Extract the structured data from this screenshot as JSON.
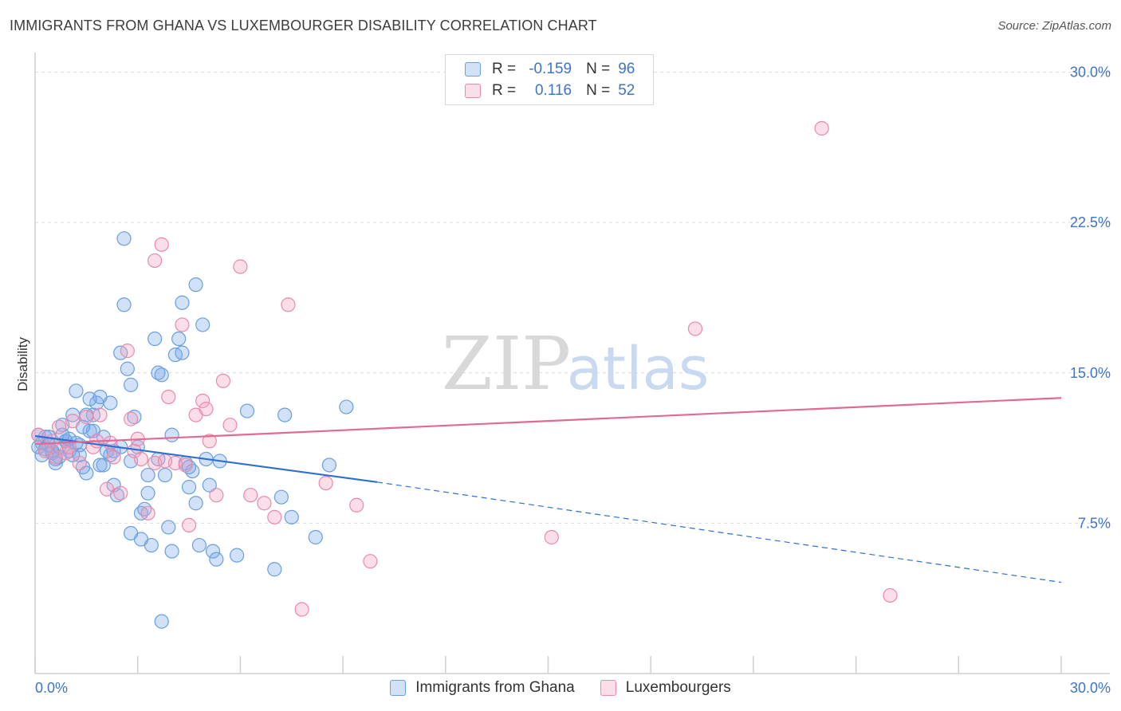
{
  "header": {
    "title": "IMMIGRANTS FROM GHANA VS LUXEMBOURGER DISABILITY CORRELATION CHART",
    "source": "Source: ZipAtlas.com"
  },
  "watermark": {
    "zip": "ZIP",
    "atlas": "atlas"
  },
  "legend": {
    "rows": [
      {
        "r_label": "R =",
        "r_value": "-0.159",
        "n_label": "N =",
        "n_value": "96"
      },
      {
        "r_label": "R =",
        "r_value": "0.116",
        "n_label": "N =",
        "n_value": "52"
      }
    ]
  },
  "colors": {
    "blue": "#6a9fe0",
    "blue_fill": "rgba(120,170,235,0.35)",
    "blue_line": "#2f6fd1",
    "pink": "#e88aaa",
    "pink_fill": "rgba(245,160,190,0.35)",
    "pink_line": "#e06a94",
    "tick_text": "#3d74c9"
  },
  "chart_data": {
    "type": "scatter",
    "title": "IMMIGRANTS FROM GHANA VS LUXEMBOURGER DISABILITY CORRELATION CHART",
    "xlabel": "",
    "ylabel": "Disability",
    "xlim": [
      0,
      30
    ],
    "ylim": [
      0,
      30.5
    ],
    "x_tick_labels": [
      "0.0%",
      "30.0%"
    ],
    "y_ticks": [
      7.5,
      15.0,
      22.5,
      30.0
    ],
    "y_tick_labels": [
      "7.5%",
      "15.0%",
      "22.5%",
      "30.0%"
    ],
    "series": [
      {
        "name": "Immigrants from Ghana",
        "color": "blue",
        "r": -0.159,
        "n": 96,
        "trend": {
          "x0": 0,
          "y0": 11.85,
          "x1": 10.0,
          "y1": 9.55,
          "dash_x1": 30.0,
          "dash_y1": 4.55
        },
        "points": [
          [
            0.1,
            11.9
          ],
          [
            0.2,
            11.5
          ],
          [
            0.3,
            11.2
          ],
          [
            0.4,
            11.8
          ],
          [
            0.5,
            11.0
          ],
          [
            0.6,
            10.7
          ],
          [
            0.7,
            11.3
          ],
          [
            0.8,
            12.4
          ],
          [
            0.9,
            11.6
          ],
          [
            1.0,
            11.1
          ],
          [
            1.1,
            12.9
          ],
          [
            1.2,
            11.5
          ],
          [
            1.3,
            10.9
          ],
          [
            1.4,
            10.3
          ],
          [
            1.5,
            10.0
          ],
          [
            1.6,
            12.1
          ],
          [
            1.7,
            12.9
          ],
          [
            1.8,
            13.5
          ],
          [
            1.9,
            13.8
          ],
          [
            2.0,
            11.8
          ],
          [
            2.1,
            11.1
          ],
          [
            2.2,
            10.9
          ],
          [
            2.3,
            9.4
          ],
          [
            2.4,
            8.9
          ],
          [
            2.5,
            16.0
          ],
          [
            2.6,
            18.4
          ],
          [
            2.7,
            15.2
          ],
          [
            2.8,
            14.4
          ],
          [
            2.9,
            12.8
          ],
          [
            3.0,
            11.3
          ],
          [
            3.1,
            8.0
          ],
          [
            3.2,
            8.2
          ],
          [
            3.3,
            9.0
          ],
          [
            3.4,
            6.4
          ],
          [
            3.5,
            16.7
          ],
          [
            3.6,
            15.0
          ],
          [
            3.7,
            14.9
          ],
          [
            3.8,
            9.9
          ],
          [
            3.9,
            7.3
          ],
          [
            4.0,
            6.1
          ],
          [
            4.1,
            15.9
          ],
          [
            4.2,
            16.7
          ],
          [
            4.3,
            18.5
          ],
          [
            4.4,
            10.5
          ],
          [
            4.5,
            9.3
          ],
          [
            4.6,
            10.1
          ],
          [
            4.7,
            8.5
          ],
          [
            4.8,
            6.4
          ],
          [
            4.9,
            17.4
          ],
          [
            5.0,
            10.7
          ],
          [
            5.1,
            9.4
          ],
          [
            5.2,
            6.1
          ],
          [
            5.3,
            5.7
          ],
          [
            5.4,
            10.6
          ],
          [
            5.9,
            5.9
          ],
          [
            6.2,
            13.1
          ],
          [
            7.0,
            5.2
          ],
          [
            7.2,
            8.8
          ],
          [
            7.3,
            12.9
          ],
          [
            7.5,
            7.8
          ],
          [
            8.2,
            6.8
          ],
          [
            8.6,
            10.4
          ],
          [
            9.1,
            13.3
          ],
          [
            2.6,
            21.7
          ],
          [
            4.7,
            19.4
          ],
          [
            3.7,
            2.6
          ],
          [
            1.2,
            14.1
          ],
          [
            1.6,
            13.7
          ],
          [
            0.2,
            10.9
          ],
          [
            0.6,
            10.5
          ],
          [
            0.9,
            11.6
          ],
          [
            1.9,
            10.4
          ],
          [
            2.3,
            11.1
          ],
          [
            2.5,
            11.3
          ],
          [
            2.8,
            10.6
          ],
          [
            3.3,
            9.9
          ],
          [
            3.6,
            10.7
          ],
          [
            3.1,
            6.7
          ],
          [
            2.8,
            7.0
          ],
          [
            0.3,
            11.8
          ],
          [
            0.5,
            11.1
          ],
          [
            1.5,
            12.9
          ],
          [
            1.0,
            11.7
          ],
          [
            1.7,
            12.1
          ],
          [
            2.0,
            10.4
          ],
          [
            4.0,
            11.9
          ],
          [
            4.3,
            16.0
          ],
          [
            4.5,
            10.3
          ],
          [
            1.3,
            11.4
          ],
          [
            0.8,
            11.9
          ],
          [
            0.4,
            11.4
          ],
          [
            0.1,
            11.3
          ],
          [
            0.7,
            10.8
          ],
          [
            1.1,
            10.9
          ],
          [
            2.2,
            13.5
          ],
          [
            1.4,
            12.3
          ]
        ]
      },
      {
        "name": "Luxembourgers",
        "color": "pink",
        "r": 0.116,
        "n": 52,
        "trend": {
          "x0": 0,
          "y0": 11.45,
          "x1": 30.0,
          "y1": 13.75
        },
        "points": [
          [
            0.1,
            11.9
          ],
          [
            0.3,
            11.1
          ],
          [
            0.5,
            11.6
          ],
          [
            0.7,
            12.3
          ],
          [
            0.9,
            11.0
          ],
          [
            1.1,
            12.6
          ],
          [
            1.3,
            10.5
          ],
          [
            1.5,
            12.8
          ],
          [
            1.7,
            11.3
          ],
          [
            1.9,
            12.9
          ],
          [
            2.1,
            9.2
          ],
          [
            2.3,
            10.8
          ],
          [
            2.5,
            9.0
          ],
          [
            2.7,
            16.1
          ],
          [
            2.9,
            11.1
          ],
          [
            3.1,
            10.7
          ],
          [
            3.3,
            8.0
          ],
          [
            3.5,
            10.5
          ],
          [
            3.7,
            21.4
          ],
          [
            3.9,
            13.8
          ],
          [
            4.1,
            10.5
          ],
          [
            4.3,
            17.4
          ],
          [
            4.5,
            7.4
          ],
          [
            4.7,
            12.9
          ],
          [
            4.9,
            13.6
          ],
          [
            5.1,
            11.6
          ],
          [
            5.3,
            8.9
          ],
          [
            5.5,
            14.6
          ],
          [
            5.7,
            12.4
          ],
          [
            6.0,
            20.3
          ],
          [
            6.3,
            8.9
          ],
          [
            6.7,
            8.5
          ],
          [
            7.0,
            7.8
          ],
          [
            7.4,
            18.4
          ],
          [
            7.8,
            3.2
          ],
          [
            8.5,
            9.5
          ],
          [
            9.4,
            8.4
          ],
          [
            9.8,
            5.6
          ],
          [
            3.5,
            20.6
          ],
          [
            2.8,
            12.7
          ],
          [
            1.8,
            11.6
          ],
          [
            0.6,
            10.8
          ],
          [
            4.4,
            10.4
          ],
          [
            5.0,
            13.2
          ],
          [
            3.0,
            11.7
          ],
          [
            2.2,
            11.5
          ],
          [
            15.1,
            6.8
          ],
          [
            19.3,
            17.2
          ],
          [
            23.0,
            27.2
          ],
          [
            25.0,
            3.9
          ],
          [
            1.0,
            11.3
          ],
          [
            3.8,
            10.6
          ]
        ]
      }
    ]
  },
  "bottom_legend": [
    {
      "label": "Immigrants from Ghana",
      "color": "blue"
    },
    {
      "label": "Luxembourgers",
      "color": "pink"
    }
  ]
}
